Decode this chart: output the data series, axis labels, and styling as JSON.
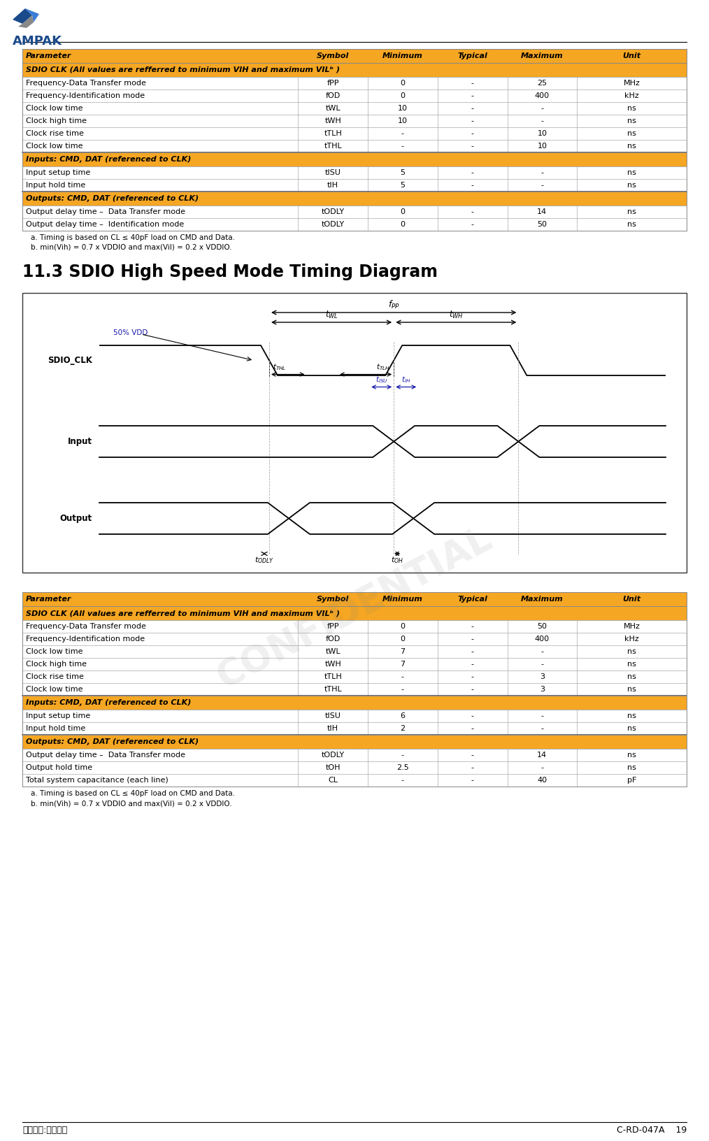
{
  "title_section": "11.3 SDIO High Speed Mode Timing Diagram",
  "footer_left": "保存期限:最新版本",
  "footer_right": "C-RD-047A    19",
  "header_color": "#F5A623",
  "table1": {
    "headers": [
      "Parameter",
      "Symbol",
      "Minimum",
      "Typical",
      "Maximum",
      "Unit"
    ],
    "section1_header": "SDIO CLK (All values are refferred to minimum VIH and maximum VILᵇ )",
    "rows1": [
      [
        "Frequency-Data Transfer mode",
        "fPP",
        "0",
        "-",
        "25",
        "MHz"
      ],
      [
        "Frequency-Identification mode",
        "fOD",
        "0",
        "-",
        "400",
        "kHz"
      ],
      [
        "Clock low time",
        "tWL",
        "10",
        "-",
        "-",
        "ns"
      ],
      [
        "Clock high time",
        "tWH",
        "10",
        "-",
        "-",
        "ns"
      ],
      [
        "Clock rise time",
        "tTLH",
        "-",
        "-",
        "10",
        "ns"
      ],
      [
        "Clock low time",
        "tTHL",
        "-",
        "-",
        "10",
        "ns"
      ]
    ],
    "section2_header": "Inputs: CMD, DAT (referenced to CLK)",
    "rows2": [
      [
        "Input setup time",
        "tISU",
        "5",
        "-",
        "-",
        "ns"
      ],
      [
        "Input hold time",
        "tIH",
        "5",
        "-",
        "-",
        "ns"
      ]
    ],
    "section3_header": "Outputs: CMD, DAT (referenced to CLK)",
    "rows3": [
      [
        "Output delay time –  Data Transfer mode",
        "tODLY",
        "0",
        "-",
        "14",
        "ns"
      ],
      [
        "Output delay time –  Identification mode",
        "tODLY",
        "0",
        "-",
        "50",
        "ns"
      ]
    ],
    "footnotes": [
      "a. Timing is based on CL ≤ 40pF load on CMD and Data.",
      "b. min(Vih) = 0.7 x VDDIO and max(Vil) = 0.2 x VDDIO."
    ]
  },
  "table2": {
    "headers": [
      "Parameter",
      "Symbol",
      "Minimum",
      "Typical",
      "Maximum",
      "Unit"
    ],
    "section1_header": "SDIO CLK (All values are refferred to minimum VIH and maximum VILᵇ )",
    "rows1": [
      [
        "Frequency-Data Transfer mode",
        "fPP",
        "0",
        "-",
        "50",
        "MHz"
      ],
      [
        "Frequency-Identification mode",
        "fOD",
        "0",
        "-",
        "400",
        "kHz"
      ],
      [
        "Clock low time",
        "tWL",
        "7",
        "-",
        "-",
        "ns"
      ],
      [
        "Clock high time",
        "tWH",
        "7",
        "-",
        "-",
        "ns"
      ],
      [
        "Clock rise time",
        "tTLH",
        "-",
        "-",
        "3",
        "ns"
      ],
      [
        "Clock low time",
        "tTHL",
        "-",
        "-",
        "3",
        "ns"
      ]
    ],
    "section2_header": "Inputs: CMD, DAT (referenced to CLK)",
    "rows2": [
      [
        "Input setup time",
        "tISU",
        "6",
        "-",
        "-",
        "ns"
      ],
      [
        "Input hold time",
        "tIH",
        "2",
        "-",
        "-",
        "ns"
      ]
    ],
    "section3_header": "Outputs: CMD, DAT (referenced to CLK)",
    "rows3": [
      [
        "Output delay time –  Data Transfer mode",
        "tODLY",
        "-",
        "-",
        "14",
        "ns"
      ],
      [
        "Output hold time",
        "tOH",
        "2.5",
        "-",
        "-",
        "ns"
      ],
      [
        "Total system capacitance (each line)",
        "CL",
        "-",
        "-",
        "40",
        "pF"
      ]
    ],
    "footnotes": [
      "a. Timing is based on CL ≤ 40pF load on CMD and Data.",
      "b. min(Vih) = 0.7 x VDDIO and max(Vil) = 0.2 x VDDIO."
    ]
  }
}
